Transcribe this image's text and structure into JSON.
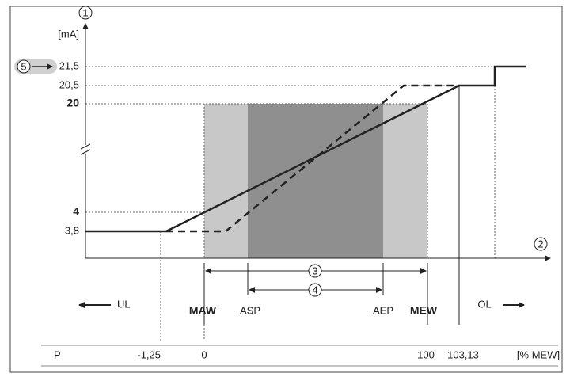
{
  "callouts": [
    "1",
    "2",
    "3",
    "4",
    "5"
  ],
  "y_axis": {
    "unit": "[mA]",
    "ticks": [
      "21,5",
      "20,5",
      "20",
      "4",
      "3,8"
    ]
  },
  "range_labels": {
    "under": "UL",
    "maw": "MAW",
    "asp": "ASP",
    "aep": "AEP",
    "mew": "MEW",
    "over": "OL"
  },
  "table": {
    "row_label": "P",
    "values": [
      "-1,25",
      "0",
      "100",
      "103,13"
    ],
    "unit": "[% MEW]"
  }
}
